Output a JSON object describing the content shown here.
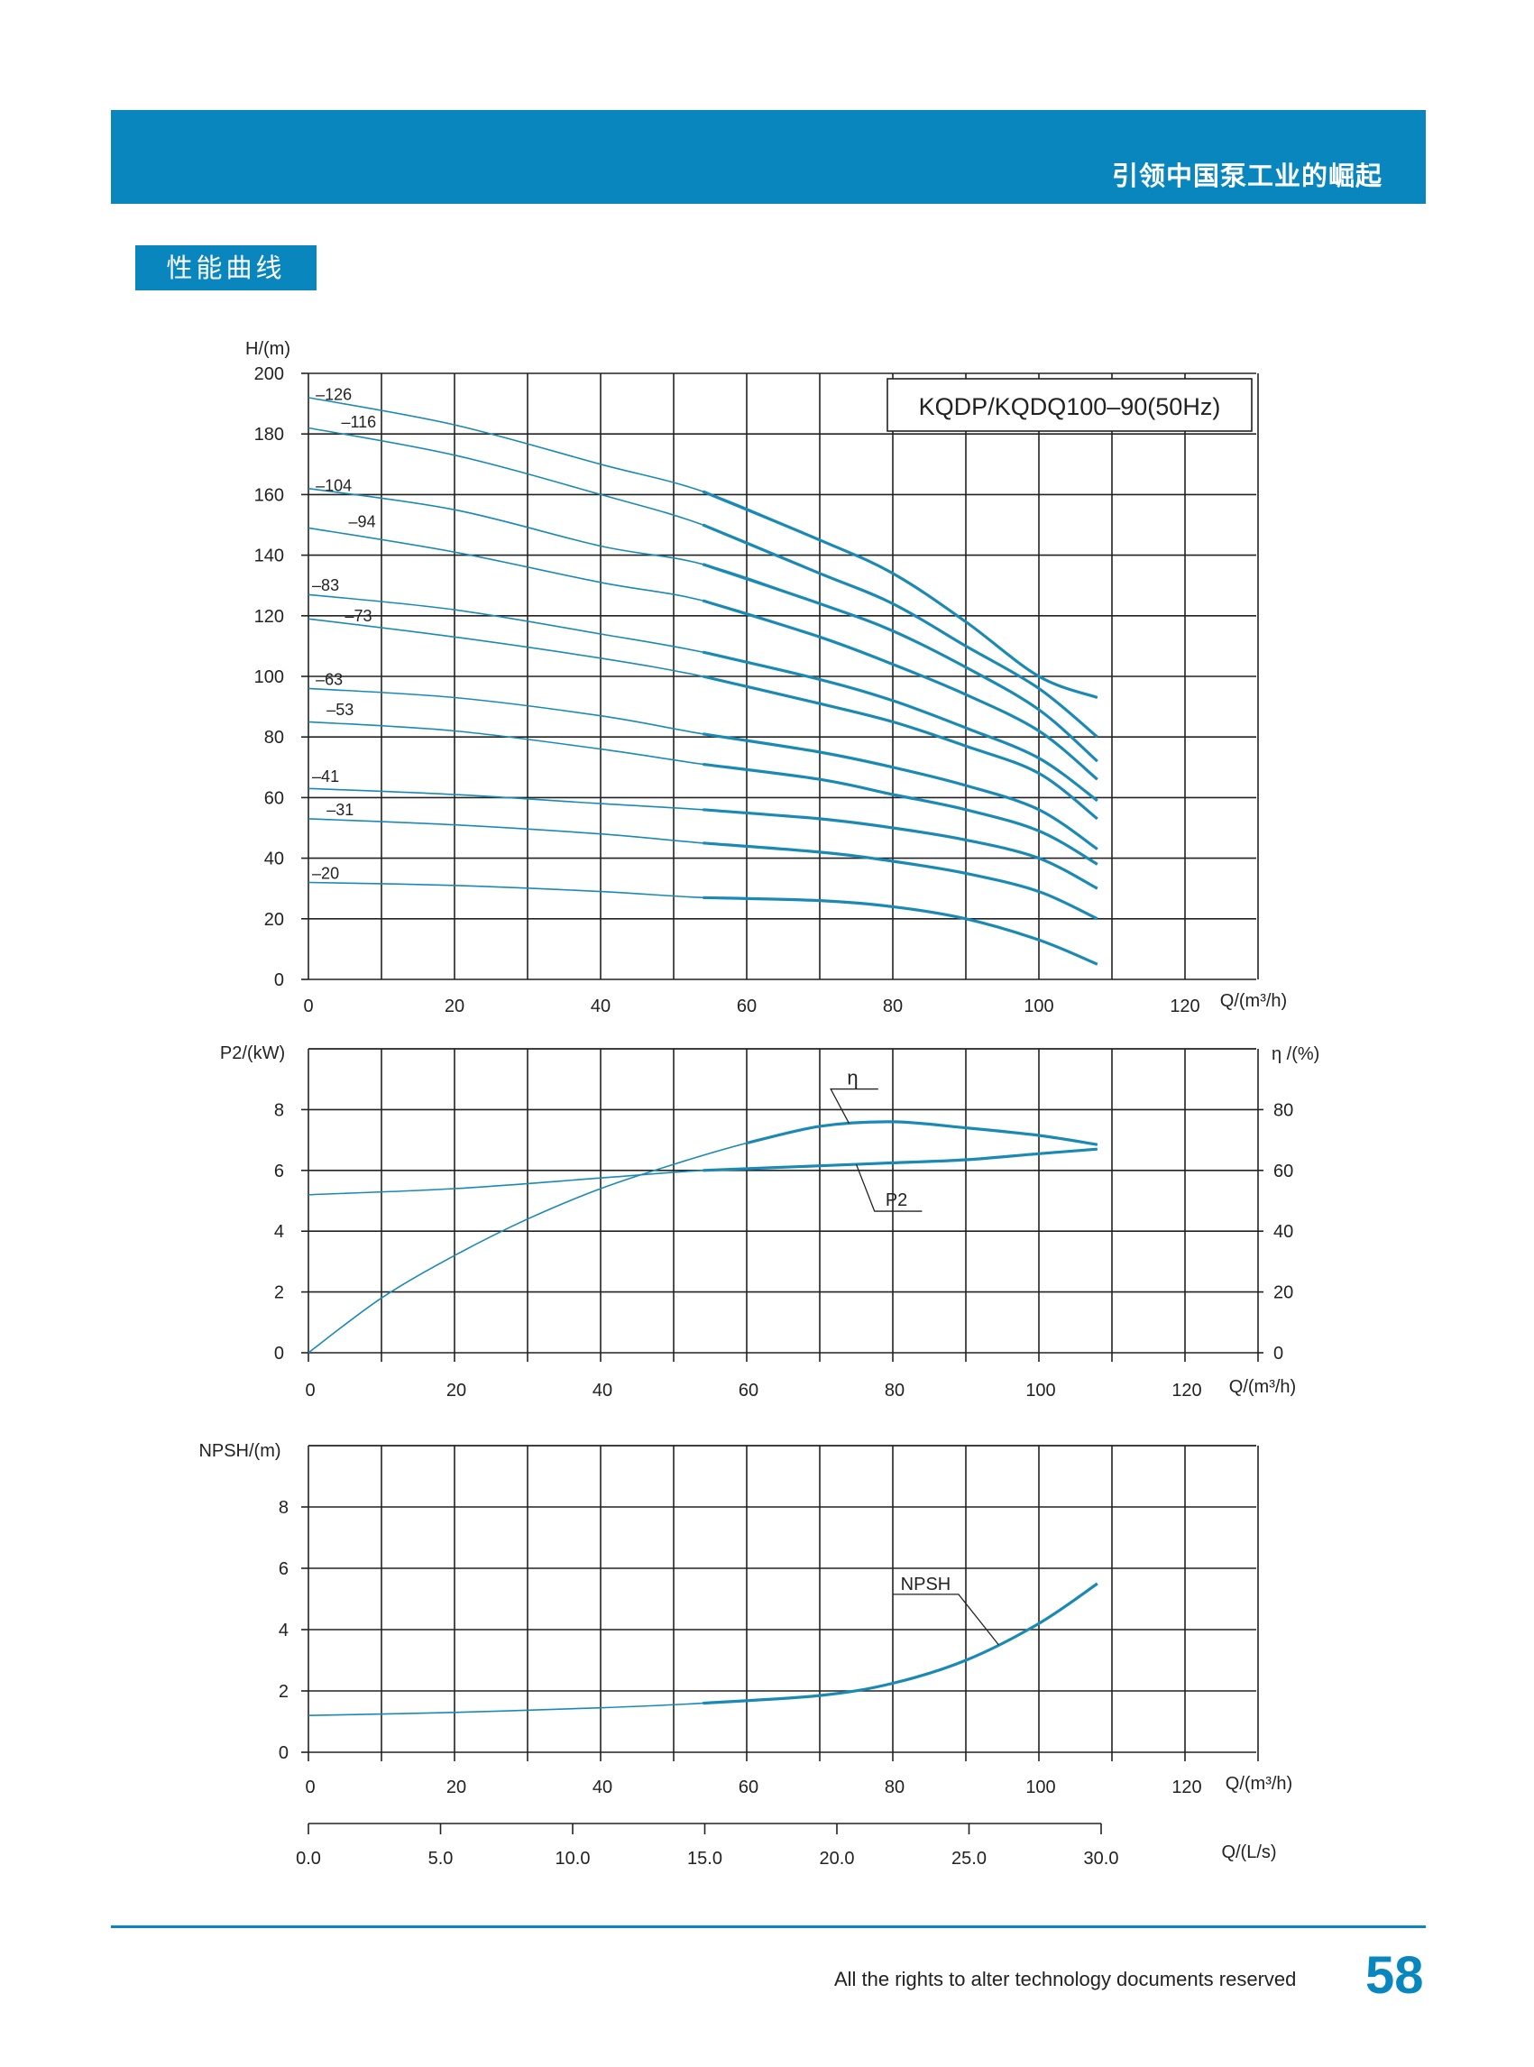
{
  "header": {
    "slogan": "引领中国泵工业的崛起"
  },
  "section": {
    "title": "性能曲线"
  },
  "footer": {
    "note": "All the rights to alter technology documents reserved",
    "page": "58"
  },
  "colors": {
    "brand": "#0a86bf",
    "curve": "#1a8ab5",
    "grid": "#222222"
  },
  "chart_data": [
    {
      "type": "line",
      "title": "KQDP/KQDQ100–90(50Hz)",
      "ylabel": "H/(m)",
      "xlabel": "Q/(m³/h)",
      "ylim": [
        0,
        200
      ],
      "xlim": [
        0,
        130
      ],
      "xticks": [
        "0",
        "20",
        "40",
        "60",
        "80",
        "100",
        "120"
      ],
      "yticks": [
        "0",
        "20",
        "40",
        "60",
        "80",
        "100",
        "120",
        "140",
        "160",
        "180",
        "200"
      ],
      "grid": true,
      "series": [
        {
          "name": "–126",
          "label_x": 1,
          "label_y": 193,
          "points": [
            [
              0,
              192
            ],
            [
              20,
              183
            ],
            [
              40,
              170
            ],
            [
              54,
              161
            ],
            [
              70,
              145
            ],
            [
              80,
              134
            ],
            [
              90,
              118
            ],
            [
              100,
              100
            ],
            [
              108,
              93
            ]
          ]
        },
        {
          "name": "–116",
          "label_x": 4.5,
          "label_y": 184,
          "points": [
            [
              0,
              182
            ],
            [
              20,
              173
            ],
            [
              40,
              160
            ],
            [
              54,
              150
            ],
            [
              70,
              134
            ],
            [
              80,
              124
            ],
            [
              90,
              110
            ],
            [
              100,
              96
            ],
            [
              108,
              80
            ]
          ]
        },
        {
          "name": "–104",
          "label_x": 1,
          "label_y": 163,
          "points": [
            [
              0,
              162
            ],
            [
              20,
              155
            ],
            [
              40,
              143
            ],
            [
              54,
              137
            ],
            [
              70,
              124
            ],
            [
              80,
              115
            ],
            [
              90,
              103
            ],
            [
              100,
              89
            ],
            [
              108,
              72
            ]
          ]
        },
        {
          "name": "–94",
          "label_x": 5.5,
          "label_y": 151,
          "points": [
            [
              0,
              149
            ],
            [
              20,
              141
            ],
            [
              40,
              131
            ],
            [
              54,
              125
            ],
            [
              70,
              113
            ],
            [
              80,
              104
            ],
            [
              90,
              94
            ],
            [
              100,
              82
            ],
            [
              108,
              66
            ]
          ]
        },
        {
          "name": "–83",
          "label_x": 0.5,
          "label_y": 130,
          "points": [
            [
              0,
              127
            ],
            [
              20,
              122
            ],
            [
              40,
              114
            ],
            [
              54,
              108
            ],
            [
              70,
              99
            ],
            [
              80,
              92
            ],
            [
              90,
              83
            ],
            [
              100,
              73
            ],
            [
              108,
              59
            ]
          ]
        },
        {
          "name": "–73",
          "label_x": 5,
          "label_y": 120,
          "points": [
            [
              0,
              119
            ],
            [
              20,
              113
            ],
            [
              40,
              106
            ],
            [
              54,
              100
            ],
            [
              70,
              91
            ],
            [
              80,
              85
            ],
            [
              90,
              77
            ],
            [
              100,
              68
            ],
            [
              108,
              53
            ]
          ]
        },
        {
          "name": "–63",
          "label_x": 1,
          "label_y": 99,
          "points": [
            [
              0,
              96
            ],
            [
              20,
              93
            ],
            [
              40,
              87
            ],
            [
              54,
              81
            ],
            [
              70,
              75
            ],
            [
              80,
              70
            ],
            [
              90,
              64
            ],
            [
              100,
              56
            ],
            [
              108,
              43
            ]
          ]
        },
        {
          "name": "–53",
          "label_x": 2.5,
          "label_y": 89,
          "points": [
            [
              0,
              85
            ],
            [
              20,
              82
            ],
            [
              40,
              76
            ],
            [
              54,
              71
            ],
            [
              70,
              66
            ],
            [
              80,
              61
            ],
            [
              90,
              56
            ],
            [
              100,
              49
            ],
            [
              108,
              38
            ]
          ]
        },
        {
          "name": "–41",
          "label_x": 0.5,
          "label_y": 67,
          "points": [
            [
              0,
              63
            ],
            [
              20,
              61
            ],
            [
              40,
              58
            ],
            [
              54,
              56
            ],
            [
              70,
              53
            ],
            [
              80,
              50
            ],
            [
              90,
              46
            ],
            [
              100,
              40
            ],
            [
              108,
              30
            ]
          ]
        },
        {
          "name": "–31",
          "label_x": 2.5,
          "label_y": 56,
          "points": [
            [
              0,
              53
            ],
            [
              20,
              51
            ],
            [
              40,
              48
            ],
            [
              54,
              45
            ],
            [
              70,
              42
            ],
            [
              80,
              39
            ],
            [
              90,
              35
            ],
            [
              100,
              29
            ],
            [
              108,
              20
            ]
          ]
        },
        {
          "name": "–20",
          "label_x": 0.5,
          "label_y": 35,
          "points": [
            [
              0,
              32
            ],
            [
              20,
              31
            ],
            [
              40,
              29
            ],
            [
              54,
              27
            ],
            [
              70,
              26
            ],
            [
              80,
              24
            ],
            [
              90,
              20
            ],
            [
              100,
              13
            ],
            [
              108,
              5
            ]
          ]
        }
      ]
    },
    {
      "type": "line",
      "ylabel": "P2/(kW)",
      "ylabel_right": "η /(%)",
      "xlabel": "Q/(m³/h)",
      "ylim": [
        0,
        10
      ],
      "ylim_right": [
        0,
        100
      ],
      "xlim": [
        0,
        130
      ],
      "xticks": [
        "0",
        "20",
        "40",
        "60",
        "80",
        "100",
        "120"
      ],
      "yticks": [
        "0",
        "2",
        "4",
        "6",
        "8"
      ],
      "yticks_right": [
        "0",
        "20",
        "40",
        "60",
        "80"
      ],
      "grid": true,
      "series": [
        {
          "name": "P2",
          "axis": "left",
          "points": [
            [
              0,
              5.2
            ],
            [
              20,
              5.4
            ],
            [
              40,
              5.75
            ],
            [
              54,
              6.0
            ],
            [
              70,
              6.15
            ],
            [
              80,
              6.25
            ],
            [
              90,
              6.35
            ],
            [
              100,
              6.55
            ],
            [
              108,
              6.7
            ]
          ]
        },
        {
          "name": "η",
          "axis": "right",
          "points": [
            [
              0,
              0
            ],
            [
              10,
              18
            ],
            [
              20,
              32
            ],
            [
              30,
              44
            ],
            [
              40,
              54
            ],
            [
              50,
              62
            ],
            [
              60,
              69
            ],
            [
              70,
              74.5
            ],
            [
              80,
              76
            ],
            [
              90,
              74
            ],
            [
              100,
              71.5
            ],
            [
              108,
              68.5
            ]
          ]
        }
      ]
    },
    {
      "type": "line",
      "ylabel": "NPSH/(m)",
      "xlabel": "Q/(m³/h)",
      "ylim": [
        0,
        10
      ],
      "xlim": [
        0,
        130
      ],
      "xticks": [
        "0",
        "20",
        "40",
        "60",
        "80",
        "100",
        "120"
      ],
      "yticks": [
        "0",
        "2",
        "4",
        "6",
        "8"
      ],
      "grid": true,
      "series": [
        {
          "name": "NPSH",
          "points": [
            [
              0,
              1.2
            ],
            [
              20,
              1.3
            ],
            [
              40,
              1.45
            ],
            [
              54,
              1.6
            ],
            [
              70,
              1.85
            ],
            [
              80,
              2.25
            ],
            [
              90,
              3.0
            ],
            [
              100,
              4.2
            ],
            [
              108,
              5.5
            ]
          ]
        }
      ],
      "secondary_axis": {
        "label": "Q/(L/s)",
        "ticks": [
          0,
          5,
          10,
          15,
          20,
          25,
          30
        ],
        "tick_labels": [
          "0.0",
          "5.0",
          "10.0",
          "15.0",
          "20.0",
          "25.0",
          "30.0"
        ]
      }
    }
  ]
}
